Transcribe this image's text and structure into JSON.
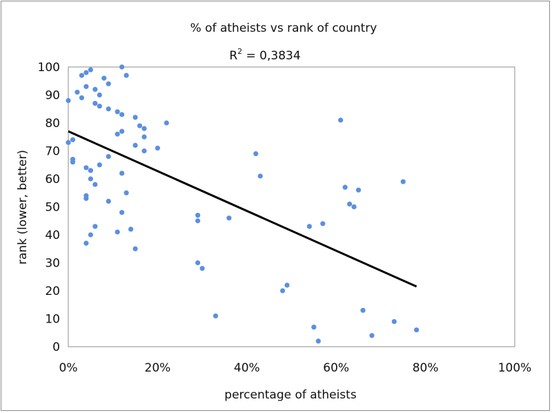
{
  "chart_data": {
    "type": "scatter",
    "title": "% of atheists vs rank of country",
    "subtitle": "R² = 0,3834",
    "subtitle_parts": {
      "base": "R",
      "sup": "2",
      "rest": " = 0,3834"
    },
    "xlabel": "percentage of atheists",
    "ylabel": "rank (lower, better)",
    "xlim": [
      0,
      1
    ],
    "ylim": [
      0,
      100
    ],
    "x_ticks": [
      0,
      0.2,
      0.4,
      0.6,
      0.8,
      1.0
    ],
    "x_tick_labels": [
      "0%",
      "20%",
      "40%",
      "60%",
      "80%",
      "100%"
    ],
    "y_ticks": [
      0,
      10,
      20,
      30,
      40,
      50,
      60,
      70,
      80,
      90,
      100
    ],
    "y_tick_labels": [
      "0",
      "10",
      "20",
      "30",
      "40",
      "50",
      "60",
      "70",
      "80",
      "90",
      "100"
    ],
    "grid": false,
    "legend": "none",
    "marker_color": "#5b8fe0",
    "trendline_color": "#000000",
    "trendline": {
      "x": [
        0,
        0.78
      ],
      "y": [
        77,
        21.5
      ]
    },
    "points": [
      [
        0.12,
        100
      ],
      [
        0.05,
        99
      ],
      [
        0.04,
        98
      ],
      [
        0.03,
        97
      ],
      [
        0.13,
        97
      ],
      [
        0.08,
        96
      ],
      [
        0.09,
        94
      ],
      [
        0.04,
        93
      ],
      [
        0.06,
        92
      ],
      [
        0.02,
        91
      ],
      [
        0.07,
        90
      ],
      [
        0.03,
        89
      ],
      [
        0.0,
        88
      ],
      [
        0.06,
        87
      ],
      [
        0.07,
        86
      ],
      [
        0.09,
        85
      ],
      [
        0.11,
        84
      ],
      [
        0.12,
        83
      ],
      [
        0.15,
        82
      ],
      [
        0.61,
        81
      ],
      [
        0.22,
        80
      ],
      [
        0.16,
        79
      ],
      [
        0.17,
        78
      ],
      [
        0.12,
        77
      ],
      [
        0.11,
        76
      ],
      [
        0.17,
        75
      ],
      [
        0.01,
        74
      ],
      [
        0.0,
        73
      ],
      [
        0.15,
        72
      ],
      [
        0.2,
        71
      ],
      [
        0.17,
        70
      ],
      [
        0.42,
        69
      ],
      [
        0.09,
        68
      ],
      [
        0.01,
        67
      ],
      [
        0.01,
        66
      ],
      [
        0.07,
        65
      ],
      [
        0.04,
        64
      ],
      [
        0.05,
        63
      ],
      [
        0.12,
        62
      ],
      [
        0.43,
        61
      ],
      [
        0.05,
        60
      ],
      [
        0.75,
        59
      ],
      [
        0.06,
        58
      ],
      [
        0.62,
        57
      ],
      [
        0.65,
        56
      ],
      [
        0.13,
        55
      ],
      [
        0.04,
        54
      ],
      [
        0.04,
        53
      ],
      [
        0.09,
        52
      ],
      [
        0.63,
        51
      ],
      [
        0.64,
        50
      ],
      [
        0.12,
        48
      ],
      [
        0.29,
        47
      ],
      [
        0.36,
        46
      ],
      [
        0.29,
        45
      ],
      [
        0.57,
        44
      ],
      [
        0.06,
        43
      ],
      [
        0.54,
        43
      ],
      [
        0.14,
        42
      ],
      [
        0.11,
        41
      ],
      [
        0.05,
        40
      ],
      [
        0.04,
        37
      ],
      [
        0.15,
        35
      ],
      [
        0.29,
        30
      ],
      [
        0.3,
        28
      ],
      [
        0.49,
        22
      ],
      [
        0.48,
        20
      ],
      [
        0.66,
        13
      ],
      [
        0.33,
        11
      ],
      [
        0.73,
        9
      ],
      [
        0.55,
        7
      ],
      [
        0.78,
        6
      ],
      [
        0.68,
        4
      ],
      [
        0.56,
        2
      ]
    ]
  }
}
